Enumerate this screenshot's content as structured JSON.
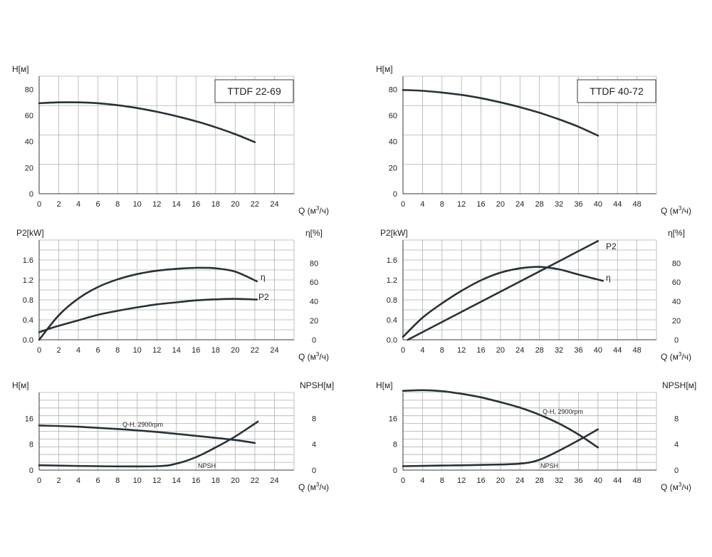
{
  "chart_data": [
    {
      "id": "p1",
      "type": "line",
      "model": "TTDF 22-69",
      "ylabel": "H[м]",
      "xlabel": "Q (м³/ч)",
      "x_ticks": [
        0,
        2,
        4,
        6,
        8,
        10,
        12,
        14,
        16,
        18,
        20,
        22,
        24
      ],
      "y_ticks": [
        0,
        20,
        40,
        60,
        80
      ],
      "xlim": [
        0,
        26
      ],
      "ylim": [
        0,
        90
      ],
      "series": [
        {
          "x": [
            0,
            2,
            4,
            6,
            8,
            10,
            12,
            14,
            16,
            18,
            20,
            22
          ],
          "y": [
            69.3,
            70,
            70,
            69.3,
            67.8,
            65.6,
            62.8,
            59.4,
            55.5,
            50.9,
            45.6,
            39.5
          ]
        }
      ]
    },
    {
      "id": "p2",
      "type": "line",
      "ylabel": "P2[kW]",
      "ylabel_right": "η[%]",
      "xlabel": "Q (м³/ч)",
      "x_ticks": [
        0,
        2,
        4,
        6,
        8,
        10,
        12,
        14,
        16,
        18,
        20,
        22,
        24
      ],
      "y_ticks": [
        "0.0",
        "0.4",
        "0.8",
        "1.2",
        "1.6"
      ],
      "y_right_ticks": [
        0,
        20,
        40,
        60,
        80
      ],
      "xlim": [
        0,
        26
      ],
      "ylim": [
        0,
        2.0
      ],
      "ylim_right": [
        0,
        104
      ],
      "series": [
        {
          "name": "η",
          "axis": "right",
          "x": [
            0,
            2,
            4,
            6,
            8,
            10,
            12,
            14,
            16,
            18,
            20,
            22.2
          ],
          "y": [
            0,
            25.5,
            43,
            55,
            63,
            68.5,
            72,
            74,
            75,
            74.5,
            71,
            61
          ]
        },
        {
          "name": "P2",
          "axis": "left",
          "x": [
            0,
            1,
            2,
            4,
            6,
            8,
            10,
            12,
            14,
            16,
            18,
            20,
            22.2
          ],
          "y": [
            0.15,
            0.22,
            0.28,
            0.39,
            0.5,
            0.58,
            0.65,
            0.71,
            0.75,
            0.79,
            0.81,
            0.82,
            0.805
          ]
        }
      ]
    },
    {
      "id": "p3",
      "type": "line",
      "ylabel": "H[м]",
      "ylabel_right": "NPSH[м]",
      "xlabel": "Q (м³/ч)",
      "x_ticks": [
        0,
        2,
        4,
        6,
        8,
        10,
        12,
        14,
        16,
        18,
        20,
        22,
        24
      ],
      "y_ticks": [
        0,
        8,
        16
      ],
      "y_right_ticks": [
        0,
        4,
        8
      ],
      "xlim": [
        0,
        26
      ],
      "ylim": [
        0,
        24
      ],
      "ylim_right": [
        0,
        12
      ],
      "series": [
        {
          "name": "Q-H, 2900rpm",
          "axis": "left",
          "x": [
            0,
            4,
            8,
            12,
            16,
            20,
            22
          ],
          "y": [
            13.8,
            13.4,
            12.7,
            11.8,
            10.6,
            9.3,
            8.4
          ]
        },
        {
          "name": "NPSH",
          "axis": "right",
          "x": [
            0,
            6,
            12,
            14,
            16,
            18,
            20,
            22.3
          ],
          "y": [
            0.75,
            0.6,
            0.6,
            1.0,
            2.0,
            3.5,
            5.2,
            7.5
          ]
        }
      ]
    },
    {
      "id": "p4",
      "type": "line",
      "model": "TTDF 40-72",
      "ylabel": "H[м]",
      "xlabel": "Q (м³/ч)",
      "x_ticks": [
        0,
        4,
        8,
        12,
        16,
        20,
        24,
        28,
        32,
        36,
        40,
        44,
        48
      ],
      "y_ticks": [
        0,
        20,
        40,
        60,
        80
      ],
      "xlim": [
        0,
        52
      ],
      "ylim": [
        0,
        90
      ],
      "series": [
        {
          "x": [
            0,
            4,
            8,
            12,
            16,
            20,
            24,
            28,
            32,
            36,
            40
          ],
          "y": [
            79.5,
            78.8,
            77.5,
            75.7,
            73.2,
            70,
            66.3,
            62,
            57,
            51.3,
            44.5
          ]
        }
      ]
    },
    {
      "id": "p5",
      "type": "line",
      "ylabel": "P2[kW]",
      "ylabel_right": "η[%]",
      "xlabel": "Q (м³/ч)",
      "x_ticks": [
        0,
        4,
        8,
        12,
        16,
        20,
        24,
        28,
        32,
        36,
        40,
        44,
        48
      ],
      "y_ticks": [
        "0.0",
        "0.4",
        "0.8",
        "1.2",
        "1.6"
      ],
      "y_right_ticks": [
        0,
        20,
        40,
        60,
        80
      ],
      "xlim": [
        0,
        52
      ],
      "ylim": [
        0,
        2.0
      ],
      "ylim_right": [
        0,
        104
      ],
      "series": [
        {
          "name": "P2",
          "axis": "left",
          "x": [
            1,
            40
          ],
          "y": [
            0.0,
            1.98
          ]
        },
        {
          "name": "η",
          "axis": "right",
          "x": [
            0,
            4,
            8,
            12,
            16,
            20,
            24,
            28,
            32,
            36,
            41
          ],
          "y": [
            3,
            23,
            38,
            51,
            62,
            70,
            74.5,
            76,
            73.5,
            68,
            61.5
          ]
        }
      ]
    },
    {
      "id": "p6",
      "type": "line",
      "ylabel": "H[м]",
      "ylabel_right": "NPSH[м]",
      "xlabel": "Q (м³/ч)",
      "x_ticks": [
        0,
        4,
        8,
        12,
        16,
        20,
        24,
        28,
        32,
        36,
        40,
        44,
        48
      ],
      "y_ticks": [
        0,
        8,
        16
      ],
      "y_right_ticks": [
        0,
        4,
        8
      ],
      "xlim": [
        0,
        52
      ],
      "ylim": [
        0,
        24
      ],
      "ylim_right": [
        0,
        12
      ],
      "series": [
        {
          "name": "Q-H, 2900rpm",
          "axis": "left",
          "x": [
            0,
            4,
            8,
            12,
            16,
            20,
            24,
            28,
            32,
            36,
            40
          ],
          "y": [
            24.5,
            24.7,
            24.4,
            23.6,
            22.5,
            21,
            19.3,
            17.1,
            14.4,
            11,
            7.0
          ]
        },
        {
          "name": "NPSH",
          "axis": "right",
          "x": [
            0,
            8,
            16,
            24,
            28,
            32,
            36,
            40
          ],
          "y": [
            0.6,
            0.7,
            0.8,
            1.0,
            1.6,
            3.0,
            4.6,
            6.3
          ]
        }
      ]
    }
  ]
}
